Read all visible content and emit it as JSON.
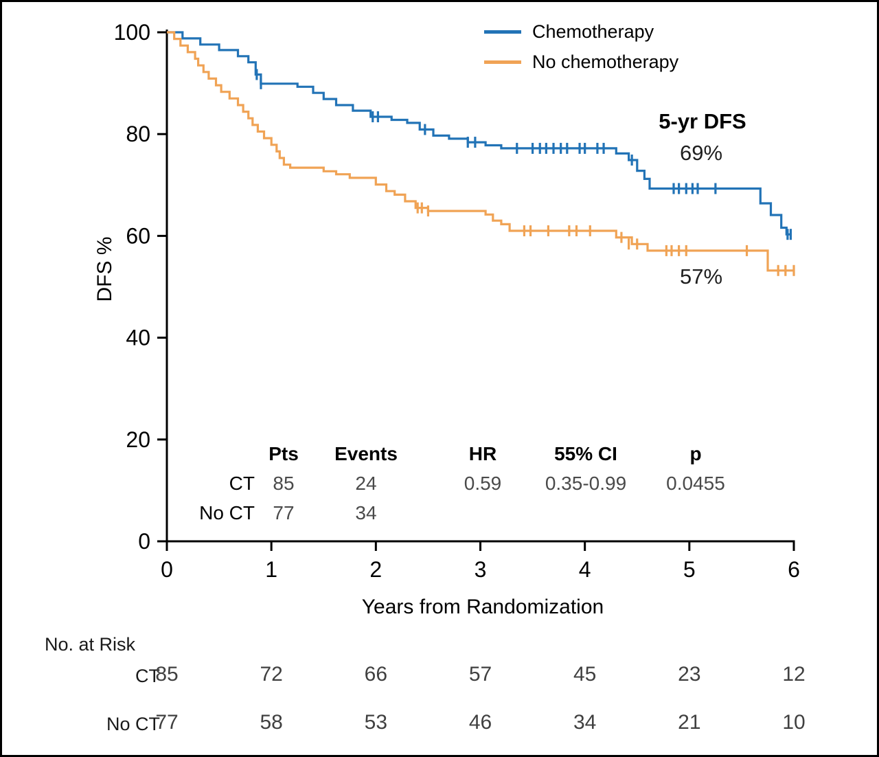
{
  "figure": {
    "background": "#ffffff",
    "border_color": "#000000"
  },
  "chart_data": {
    "type": "line",
    "subtype": "kaplan_meier_step",
    "title": "",
    "xlabel": "Years from Randomization",
    "ylabel": "DFS %",
    "xlim": [
      0,
      6
    ],
    "ylim": [
      0,
      100
    ],
    "x_ticks": [
      0,
      1,
      2,
      3,
      4,
      5,
      6
    ],
    "y_ticks": [
      0,
      20,
      40,
      60,
      80,
      100
    ],
    "grid": false,
    "legend_position": "top-right",
    "annotations": {
      "heading": "5-yr DFS",
      "chemo_value": "69%",
      "no_chemo_value": "57%"
    },
    "series": [
      {
        "name": "Chemotherapy",
        "color": "#2273b6",
        "steps": [
          [
            0,
            100
          ],
          [
            0.15,
            98.8
          ],
          [
            0.32,
            97.6
          ],
          [
            0.5,
            96.5
          ],
          [
            0.68,
            95.3
          ],
          [
            0.78,
            94.1
          ],
          [
            0.85,
            91.7
          ],
          [
            0.9,
            89.9
          ],
          [
            1.25,
            89.3
          ],
          [
            1.4,
            88.1
          ],
          [
            1.5,
            86.9
          ],
          [
            1.62,
            85.7
          ],
          [
            1.78,
            84.6
          ],
          [
            1.95,
            83.4
          ],
          [
            2.15,
            82.8
          ],
          [
            2.3,
            82.2
          ],
          [
            2.42,
            80.9
          ],
          [
            2.55,
            79.7
          ],
          [
            2.7,
            79.1
          ],
          [
            2.88,
            78.4
          ],
          [
            3.05,
            77.8
          ],
          [
            3.2,
            77.2
          ],
          [
            4.3,
            76.2
          ],
          [
            4.42,
            74.9
          ],
          [
            4.5,
            72.8
          ],
          [
            4.57,
            71.2
          ],
          [
            4.62,
            69.3
          ],
          [
            5.68,
            66.4
          ],
          [
            5.78,
            64.1
          ],
          [
            5.88,
            61.6
          ],
          [
            5.93,
            60.3
          ],
          [
            5.97,
            60.3
          ]
        ],
        "censor_marks": [
          [
            0.86,
            91.7
          ],
          [
            0.9,
            89.9
          ],
          [
            1.97,
            83.4
          ],
          [
            2.02,
            83.4
          ],
          [
            2.47,
            80.9
          ],
          [
            2.88,
            78.4
          ],
          [
            2.95,
            78.4
          ],
          [
            3.35,
            77.2
          ],
          [
            3.5,
            77.2
          ],
          [
            3.57,
            77.2
          ],
          [
            3.63,
            77.2
          ],
          [
            3.7,
            77.2
          ],
          [
            3.77,
            77.2
          ],
          [
            3.83,
            77.2
          ],
          [
            3.95,
            77.2
          ],
          [
            4.0,
            77.2
          ],
          [
            4.12,
            77.2
          ],
          [
            4.18,
            77.2
          ],
          [
            4.45,
            74.9
          ],
          [
            4.85,
            69.3
          ],
          [
            4.9,
            69.3
          ],
          [
            4.97,
            69.3
          ],
          [
            5.03,
            69.3
          ],
          [
            5.08,
            69.3
          ],
          [
            5.25,
            69.3
          ],
          [
            5.94,
            60.3
          ],
          [
            5.97,
            60.3
          ]
        ]
      },
      {
        "name": "No chemotherapy",
        "color": "#f0a355",
        "steps": [
          [
            0,
            100
          ],
          [
            0.07,
            98.7
          ],
          [
            0.13,
            97.4
          ],
          [
            0.2,
            96.1
          ],
          [
            0.27,
            94.8
          ],
          [
            0.3,
            93.5
          ],
          [
            0.35,
            92.2
          ],
          [
            0.4,
            90.9
          ],
          [
            0.47,
            89.6
          ],
          [
            0.52,
            88.3
          ],
          [
            0.6,
            87.0
          ],
          [
            0.68,
            85.7
          ],
          [
            0.73,
            84.4
          ],
          [
            0.78,
            83.1
          ],
          [
            0.82,
            81.8
          ],
          [
            0.87,
            80.5
          ],
          [
            0.93,
            79.2
          ],
          [
            1.0,
            77.9
          ],
          [
            1.05,
            76.6
          ],
          [
            1.08,
            75.3
          ],
          [
            1.12,
            74.0
          ],
          [
            1.18,
            73.4
          ],
          [
            1.5,
            72.7
          ],
          [
            1.62,
            72.1
          ],
          [
            1.75,
            71.4
          ],
          [
            2.0,
            70.1
          ],
          [
            2.1,
            68.8
          ],
          [
            2.18,
            68.1
          ],
          [
            2.28,
            66.8
          ],
          [
            2.38,
            65.5
          ],
          [
            2.5,
            64.9
          ],
          [
            3.05,
            64.2
          ],
          [
            3.12,
            63.0
          ],
          [
            3.2,
            62.3
          ],
          [
            3.28,
            61.0
          ],
          [
            4.3,
            59.7
          ],
          [
            4.45,
            58.4
          ],
          [
            4.6,
            57.1
          ],
          [
            5.75,
            53.2
          ],
          [
            6.0,
            53.2
          ]
        ],
        "censor_marks": [
          [
            2.4,
            65.5
          ],
          [
            2.44,
            65.5
          ],
          [
            2.5,
            64.9
          ],
          [
            3.42,
            61.0
          ],
          [
            3.48,
            61.0
          ],
          [
            3.65,
            61.0
          ],
          [
            3.85,
            61.0
          ],
          [
            3.92,
            61.0
          ],
          [
            4.05,
            61.0
          ],
          [
            4.35,
            59.7
          ],
          [
            4.42,
            58.4
          ],
          [
            4.5,
            58.4
          ],
          [
            4.78,
            57.1
          ],
          [
            4.83,
            57.1
          ],
          [
            4.9,
            57.1
          ],
          [
            4.97,
            57.1
          ],
          [
            5.55,
            57.1
          ],
          [
            5.85,
            53.2
          ],
          [
            5.92,
            53.2
          ],
          [
            6.0,
            53.2
          ]
        ]
      }
    ]
  },
  "stats_table": {
    "headers": {
      "pts": "Pts",
      "events": "Events",
      "hr": "HR",
      "ci": "55% CI",
      "p": "p"
    },
    "rows": [
      {
        "label": "CT",
        "pts": "85",
        "events": "24",
        "hr": "0.59",
        "ci": "0.35-0.99",
        "p": "0.0455"
      },
      {
        "label": "No CT",
        "pts": "77",
        "events": "34",
        "hr": "",
        "ci": "",
        "p": ""
      }
    ]
  },
  "risk_table": {
    "title": "No. at Risk",
    "rows": [
      {
        "label": "CT",
        "counts": [
          "85",
          "72",
          "66",
          "57",
          "45",
          "23",
          "12"
        ]
      },
      {
        "label": "No CT",
        "counts": [
          "77",
          "58",
          "53",
          "46",
          "34",
          "21",
          "10"
        ]
      }
    ]
  }
}
